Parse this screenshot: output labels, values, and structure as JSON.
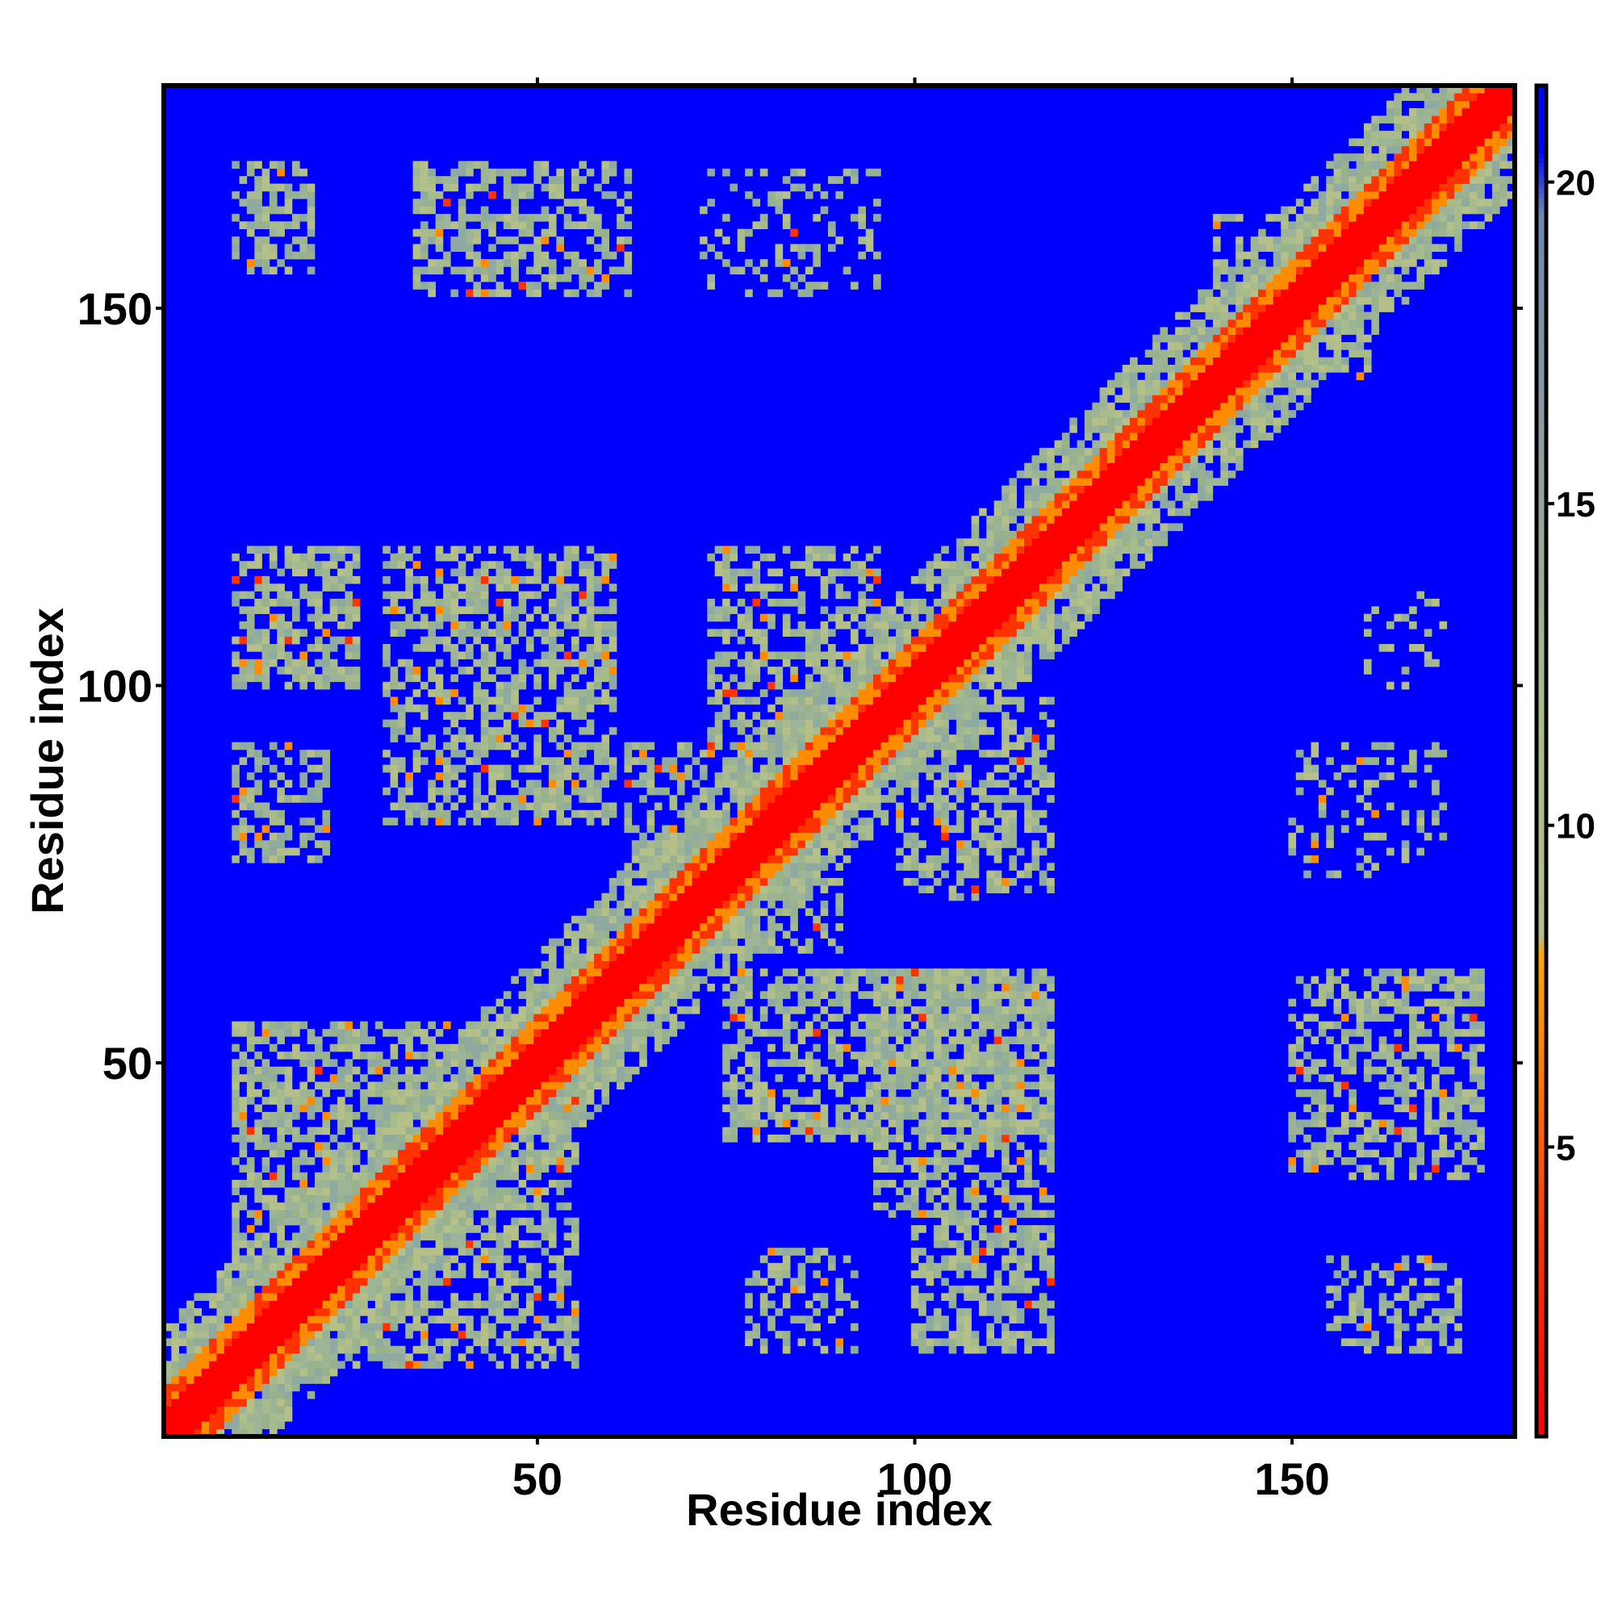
{
  "chart_data": {
    "type": "heatmap",
    "title": "",
    "xlabel": "Residue index",
    "ylabel": "Residue index",
    "xlim": [
      1,
      179
    ],
    "ylim": [
      1,
      179
    ],
    "x_ticks": [
      50,
      100,
      150
    ],
    "y_ticks": [
      50,
      100,
      150
    ],
    "colorbar": {
      "ticks": [
        5,
        10,
        15,
        20
      ],
      "range": [
        0.5,
        21.5
      ],
      "stops": [
        {
          "value": 0.5,
          "color": "#ff0000"
        },
        {
          "value": 3.5,
          "color": "#ff3300"
        },
        {
          "value": 6.0,
          "color": "#ff7700"
        },
        {
          "value": 8.0,
          "color": "#ffa500"
        },
        {
          "value": 8.3,
          "color": "#b4c088"
        },
        {
          "value": 12.0,
          "color": "#a8bb8c"
        },
        {
          "value": 16.0,
          "color": "#8c9ea0"
        },
        {
          "value": 19.5,
          "color": "#6d89b0"
        },
        {
          "value": 20.5,
          "color": "#0000ff"
        },
        {
          "value": 21.5,
          "color": "#0000ff"
        }
      ]
    },
    "background_value": 21,
    "background_color": "#0000ff",
    "n_residues": 179,
    "diagonal_band": {
      "core_max": 3,
      "orange_max": 6,
      "green_max": 14
    },
    "contact_regions": [
      {
        "x": [
          10,
          20
        ],
        "y": [
          155,
          169
        ],
        "density": 0.55
      },
      {
        "x": [
          34,
          62
        ],
        "y": [
          152,
          169
        ],
        "density": 0.5
      },
      {
        "x": [
          72,
          95
        ],
        "y": [
          152,
          168
        ],
        "density": 0.25
      },
      {
        "x": [
          10,
          26
        ],
        "y": [
          100,
          118
        ],
        "density": 0.6
      },
      {
        "x": [
          30,
          60
        ],
        "y": [
          82,
          118
        ],
        "density": 0.55
      },
      {
        "x": [
          10,
          22
        ],
        "y": [
          77,
          92
        ],
        "density": 0.45
      },
      {
        "x": [
          73,
          95
        ],
        "y": [
          92,
          118
        ],
        "density": 0.5
      },
      {
        "x": [
          98,
          118
        ],
        "y": [
          72,
          98
        ],
        "density": 0.5
      },
      {
        "x": [
          75,
          118
        ],
        "y": [
          40,
          62
        ],
        "density": 0.55
      },
      {
        "x": [
          95,
          118
        ],
        "y": [
          30,
          62
        ],
        "density": 0.5
      },
      {
        "x": [
          100,
          118
        ],
        "y": [
          12,
          30
        ],
        "density": 0.6
      },
      {
        "x": [
          78,
          92
        ],
        "y": [
          12,
          25
        ],
        "density": 0.4
      },
      {
        "x": [
          150,
          175
        ],
        "y": [
          35,
          62
        ],
        "density": 0.5
      },
      {
        "x": [
          155,
          172
        ],
        "y": [
          12,
          24
        ],
        "density": 0.45
      },
      {
        "x": [
          150,
          170
        ],
        "y": [
          75,
          92
        ],
        "density": 0.25
      },
      {
        "x": [
          160,
          170
        ],
        "y": [
          100,
          112
        ],
        "density": 0.15
      },
      {
        "x": [
          62,
          90
        ],
        "y": [
          65,
          92
        ],
        "density": 0.5
      },
      {
        "x": [
          10,
          55
        ],
        "y": [
          10,
          55
        ],
        "density": 0.55
      },
      {
        "x": [
          140,
          160
        ],
        "y": [
          140,
          162
        ],
        "density": 0.35
      }
    ]
  }
}
